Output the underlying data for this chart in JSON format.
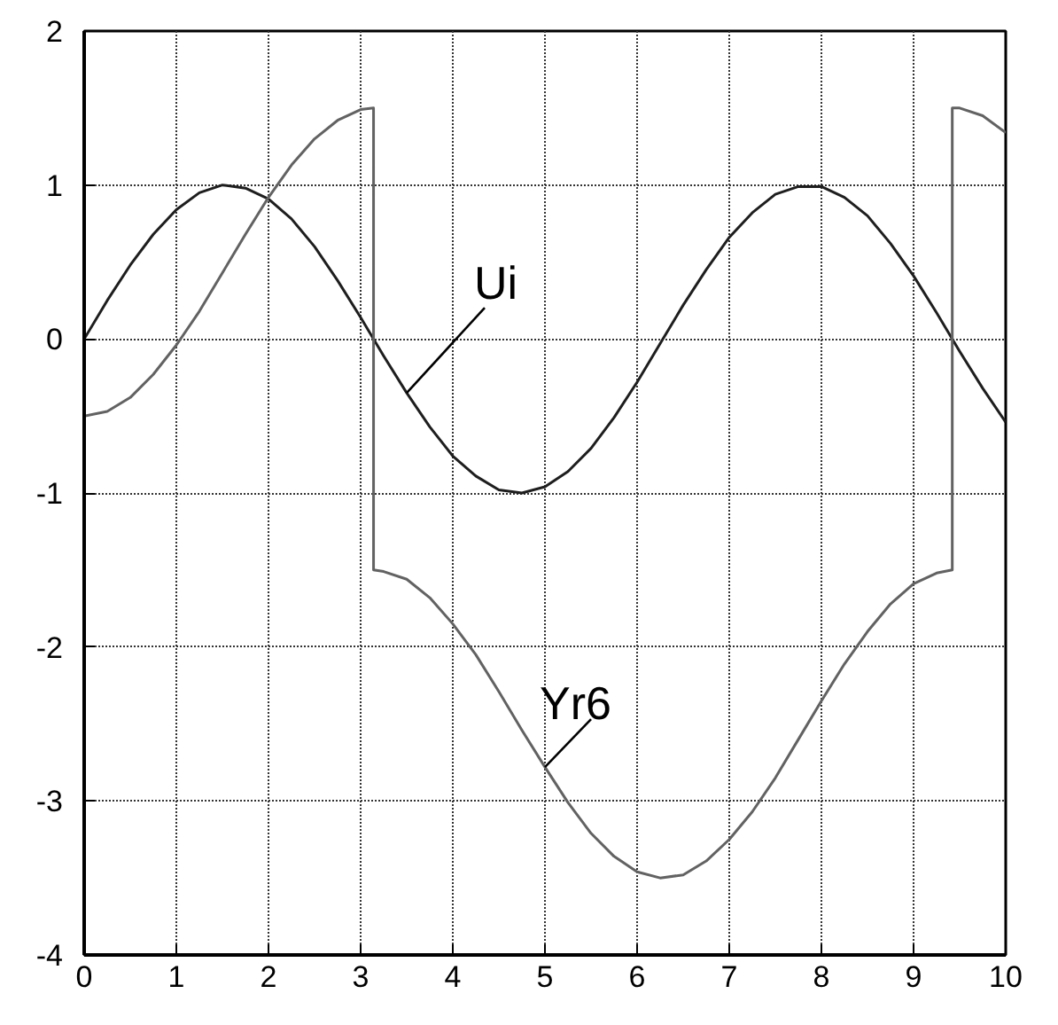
{
  "chart_data": {
    "type": "line",
    "x": [
      0,
      0.25,
      0.5,
      0.75,
      1,
      1.25,
      1.5,
      1.75,
      2,
      2.25,
      2.5,
      2.75,
      3,
      3.25,
      3.5,
      3.75,
      4,
      4.25,
      4.5,
      4.75,
      5,
      5.25,
      5.5,
      5.75,
      6,
      6.25,
      6.5,
      6.75,
      7,
      7.25,
      7.5,
      7.75,
      8,
      8.25,
      8.5,
      8.75,
      9,
      9.25,
      9.5,
      9.75,
      10
    ],
    "series": [
      {
        "name": "Ui",
        "color": "#1e1e1e",
        "values": [
          0,
          0.25,
          0.48,
          0.68,
          0.84,
          0.95,
          1.0,
          0.98,
          0.91,
          0.78,
          0.6,
          0.38,
          0.14,
          -0.11,
          -0.35,
          -0.57,
          -0.76,
          -0.89,
          -0.98,
          -1.0,
          -0.96,
          -0.86,
          -0.71,
          -0.51,
          -0.28,
          -0.03,
          0.22,
          0.45,
          0.66,
          0.82,
          0.94,
          0.99,
          0.99,
          0.92,
          0.8,
          0.62,
          0.41,
          0.17,
          -0.08,
          -0.32,
          -0.54
        ]
      },
      {
        "name": "Yr6",
        "color": "#626262",
        "x": [
          0,
          0.25,
          0.5,
          0.75,
          1,
          1.25,
          1.5,
          1.75,
          2,
          2.25,
          2.5,
          2.75,
          3,
          3.14,
          3.14,
          3.25,
          3.5,
          3.75,
          4,
          4.25,
          4.5,
          4.75,
          5,
          5.25,
          5.5,
          5.75,
          6,
          6.25,
          6.5,
          6.75,
          7,
          7.25,
          7.5,
          7.75,
          8,
          8.25,
          8.5,
          8.75,
          9,
          9.25,
          9.42,
          9.42,
          9.5,
          9.75,
          10
        ],
        "values": [
          -0.5,
          -0.47,
          -0.38,
          -0.23,
          -0.04,
          0.18,
          0.43,
          0.68,
          0.92,
          1.13,
          1.3,
          1.42,
          1.49,
          1.5,
          -1.5,
          -1.51,
          -1.56,
          -1.68,
          -1.85,
          -2.05,
          -2.29,
          -2.54,
          -2.78,
          -3.01,
          -3.21,
          -3.36,
          -3.46,
          -3.5,
          -3.48,
          -3.39,
          -3.25,
          -3.07,
          -2.85,
          -2.6,
          -2.35,
          -2.11,
          -1.9,
          -1.72,
          -1.59,
          -1.52,
          -1.5,
          1.5,
          1.5,
          1.45,
          1.34
        ]
      }
    ],
    "xlim": [
      0,
      10
    ],
    "ylim": [
      -4,
      2
    ],
    "xticks": [
      0,
      1,
      2,
      3,
      4,
      5,
      6,
      7,
      8,
      9,
      10
    ],
    "yticks": [
      -4,
      -3,
      -2,
      -1,
      0,
      1,
      2
    ],
    "grid": true
  }
}
